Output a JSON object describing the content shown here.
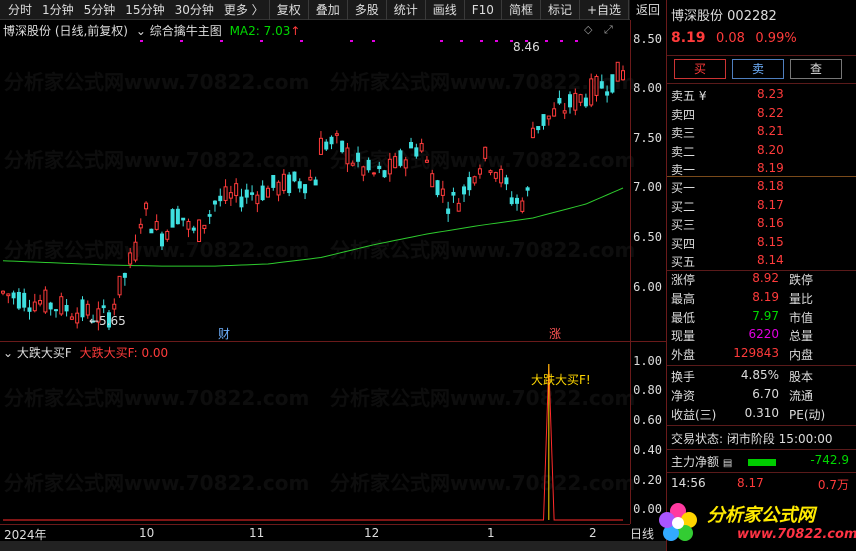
{
  "toolbar": {
    "periods": [
      "分时",
      "1分钟",
      "5分钟",
      "15分钟",
      "30分钟",
      "更多 〉"
    ],
    "tools": [
      "复权",
      "叠加",
      "多股",
      "统计",
      "画线",
      "F10",
      "简框",
      "标记",
      "+自选",
      "返回"
    ]
  },
  "main_chart": {
    "title": "博深股份 (日线,前复权)",
    "indicator_name": "综合擒牛主图",
    "ma_label": "MA2: 7.03",
    "ma_arrow": "↑",
    "high_label": "8.46",
    "low_label": "←5.65",
    "marker_cai": "财",
    "marker_zhang": "涨",
    "y_ticks": [
      "8.50",
      "8.00",
      "7.50",
      "7.00",
      "6.50",
      "6.00"
    ],
    "watermark": "分析家公式网www.70822.com"
  },
  "indicator_chart": {
    "name": "大跌大买F",
    "value_label": "大跌大买F: 0.00",
    "signal_label": "大跌大买F!",
    "y_ticks": [
      "1.00",
      "0.80",
      "0.60",
      "0.40",
      "0.20",
      "0.00"
    ]
  },
  "x_axis": {
    "ticks": [
      "2024年",
      "10",
      "11",
      "12",
      "1",
      "2"
    ],
    "right_label": "日线"
  },
  "quote": {
    "name": "博深股份",
    "code": "002282",
    "price": "8.19",
    "change": "0.08",
    "pct": "0.99%",
    "buttons": [
      "买",
      "卖",
      "查"
    ],
    "asks": [
      {
        "label": "卖五 ¥",
        "price": "8.23"
      },
      {
        "label": "卖四",
        "price": "8.22"
      },
      {
        "label": "卖三",
        "price": "8.21"
      },
      {
        "label": "卖二",
        "price": "8.20"
      },
      {
        "label": "卖一",
        "price": "8.19"
      }
    ],
    "bids": [
      {
        "label": "买一",
        "price": "8.18"
      },
      {
        "label": "买二",
        "price": "8.17"
      },
      {
        "label": "买三",
        "price": "8.16"
      },
      {
        "label": "买四",
        "price": "8.15"
      },
      {
        "label": "买五",
        "price": "8.14"
      }
    ],
    "stats": [
      {
        "l1": "涨停",
        "v1": "8.92",
        "l2": "跌停"
      },
      {
        "l1": "最高",
        "v1": "8.19",
        "l2": "量比"
      },
      {
        "l1": "最低",
        "v1": "7.97",
        "l2": "市值"
      },
      {
        "l1": "现量",
        "v1": "6220",
        "l2": "总量"
      },
      {
        "l1": "外盘",
        "v1": "129843",
        "l2": "内盘"
      }
    ],
    "stats2": [
      {
        "l1": "换手",
        "v1": "4.85%",
        "l2": "股本"
      },
      {
        "l1": "净资",
        "v1": "6.70",
        "l2": "流通"
      },
      {
        "l1": "收益(三)",
        "v1": "0.310",
        "l2": "PE(动)"
      }
    ],
    "trade_status": "交易状态: 闭市阶段 15:00:00",
    "net_flow_label": "主力净额",
    "net_flow_value": "-742.9",
    "tick_time": "14:56",
    "tick_price": "8.17",
    "tick_vol": "0.7万",
    "logo_text": "分析家公式网",
    "logo_url": "www.70822.com"
  },
  "chart_data": [
    {
      "type": "line",
      "title": "综合擒牛主图",
      "ylim": [
        5.6,
        8.6
      ],
      "series": [
        {
          "name": "MA2",
          "x": [
            0,
            10,
            20,
            30,
            40,
            50,
            60,
            70,
            80,
            90,
            100,
            110,
            117
          ],
          "values": [
            6.35,
            6.33,
            6.31,
            6.3,
            6.3,
            6.32,
            6.38,
            6.5,
            6.6,
            6.68,
            6.75,
            6.88,
            7.03
          ]
        }
      ],
      "annotations": [
        "8.46",
        "5.65"
      ]
    },
    {
      "type": "line",
      "title": "大跌大买F",
      "ylim": [
        0,
        1.0
      ],
      "series": [
        {
          "name": "大跌大买F",
          "x": [
            0,
            102,
            103,
            104,
            105,
            117
          ],
          "values": [
            0,
            0,
            1.0,
            0,
            0,
            0
          ]
        }
      ]
    }
  ]
}
